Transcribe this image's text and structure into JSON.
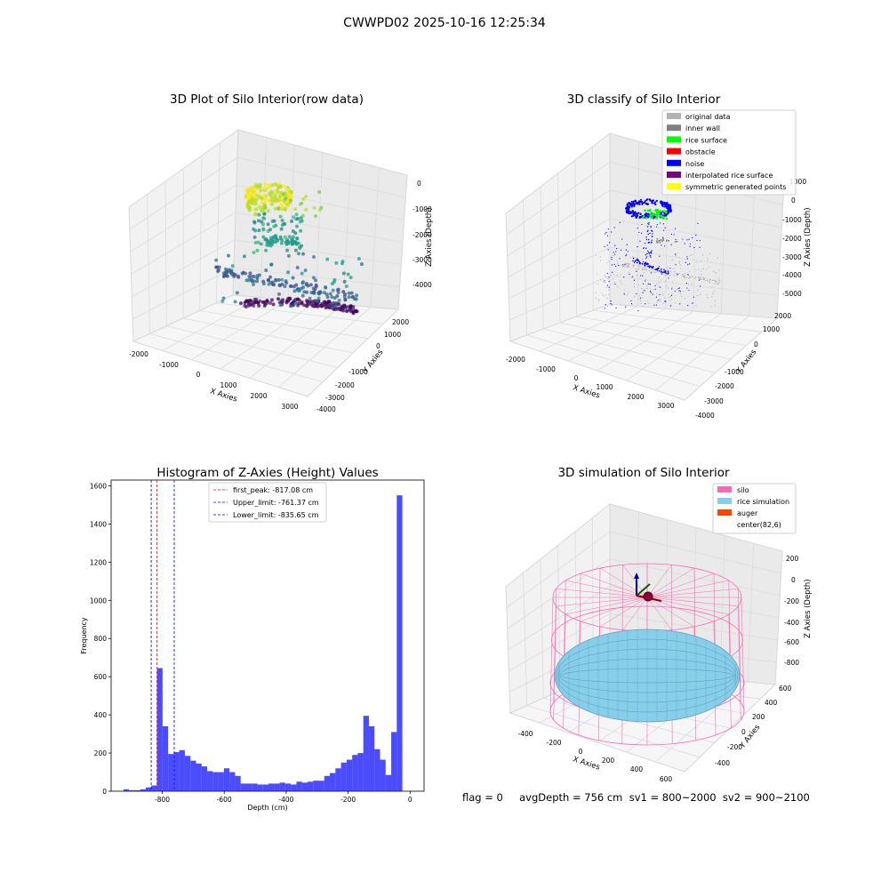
{
  "figure": {
    "suptitle": "CWWPD02 2025-10-16 12:25:34",
    "footer": "flag = 0     avgDepth = 756 cm  sv1 = 800~2000  sv2 = 900~2100"
  },
  "panels": {
    "raw": {
      "title": "3D Plot of Silo Interior(row data)",
      "xlabel": "X Axies",
      "ylabel": "Y Axies",
      "zlabel": "Z Axies (Depth)",
      "xticks": [
        "-2000",
        "-1000",
        "0",
        "1000",
        "2000",
        "3000"
      ],
      "yticks": [
        "2000",
        "1000",
        "0",
        "-1000",
        "-2000",
        "-3000",
        "-4000"
      ],
      "zticks": [
        "0",
        "-1000",
        "-2000",
        "-3000",
        "-4000"
      ]
    },
    "classify": {
      "title": "3D classify of Silo Interior",
      "xlabel": "X Axies",
      "ylabel": "Y Axies",
      "zlabel": "Z Axies (Depth)",
      "xticks": [
        "-2000",
        "-1000",
        "0",
        "1000",
        "2000",
        "3000"
      ],
      "yticks": [
        "2000",
        "1000",
        "0",
        "-1000",
        "-2000",
        "-3000",
        "-4000"
      ],
      "zticks": [
        "1000",
        "0",
        "-1000",
        "-2000",
        "-3000",
        "-4000",
        "-5000"
      ],
      "legend": [
        {
          "label": "original data",
          "color": "#b3b3b3"
        },
        {
          "label": "inner wall",
          "color": "#808080"
        },
        {
          "label": "rice surface",
          "color": "#00ff00"
        },
        {
          "label": "obstacle",
          "color": "#ff0000"
        },
        {
          "label": "noise",
          "color": "#0000ff"
        },
        {
          "label": "interpolated rice surface",
          "color": "#800080"
        },
        {
          "label": "symmetric generated points",
          "color": "#ffff00"
        }
      ]
    },
    "simulation": {
      "title": "3D simulation of Silo Interior",
      "xlabel": "X Axies",
      "ylabel": "Y Axies",
      "zlabel": "Z Axies (Depth)",
      "xticks": [
        "-400",
        "-200",
        "0",
        "200",
        "400",
        "600"
      ],
      "yticks": [
        "600",
        "400",
        "200",
        "0",
        "-200",
        "-400"
      ],
      "zticks": [
        "200",
        "0",
        "-200",
        "-400",
        "-600",
        "-800"
      ],
      "legend": [
        {
          "label": "silo",
          "color": "#ff69b4"
        },
        {
          "label": "rice simulation",
          "color": "#87ceeb"
        },
        {
          "label": "auger",
          "color": "#ff4500"
        },
        {
          "label": "center(82,6)",
          "color": ""
        }
      ]
    }
  },
  "chart_data": [
    {
      "type": "bar",
      "title": "Histogram of Z-Axies (Height) Values",
      "xlabel": "Depth (cm)",
      "ylabel": "Frequency",
      "xlim": [
        -965,
        45
      ],
      "ylim": [
        0,
        1630
      ],
      "xticks": [
        -800,
        -600,
        -400,
        -200,
        0
      ],
      "yticks": [
        0,
        200,
        400,
        600,
        800,
        1000,
        1200,
        1400,
        1600
      ],
      "bar_color": "#0000ff",
      "bins": [
        [
          -925,
          -907,
          10
        ],
        [
          -907,
          -889,
          5
        ],
        [
          -889,
          -871,
          5
        ],
        [
          -871,
          -853,
          10
        ],
        [
          -853,
          -835,
          20
        ],
        [
          -835,
          -817,
          30
        ],
        [
          -817,
          -799,
          645
        ],
        [
          -799,
          -781,
          340
        ],
        [
          -781,
          -763,
          195
        ],
        [
          -763,
          -745,
          205
        ],
        [
          -745,
          -727,
          215
        ],
        [
          -727,
          -709,
          185
        ],
        [
          -709,
          -691,
          160
        ],
        [
          -691,
          -673,
          145
        ],
        [
          -673,
          -655,
          130
        ],
        [
          -655,
          -637,
          105
        ],
        [
          -637,
          -619,
          100
        ],
        [
          -619,
          -601,
          100
        ],
        [
          -601,
          -583,
          120
        ],
        [
          -583,
          -565,
          100
        ],
        [
          -565,
          -547,
          80
        ],
        [
          -547,
          -529,
          40
        ],
        [
          -529,
          -511,
          40
        ],
        [
          -511,
          -493,
          40
        ],
        [
          -493,
          -475,
          35
        ],
        [
          -475,
          -457,
          35
        ],
        [
          -457,
          -439,
          40
        ],
        [
          -439,
          -421,
          40
        ],
        [
          -421,
          -403,
          45
        ],
        [
          -403,
          -385,
          40
        ],
        [
          -385,
          -367,
          35
        ],
        [
          -367,
          -349,
          50
        ],
        [
          -349,
          -331,
          45
        ],
        [
          -331,
          -313,
          50
        ],
        [
          -313,
          -295,
          55
        ],
        [
          -295,
          -277,
          55
        ],
        [
          -277,
          -259,
          80
        ],
        [
          -259,
          -241,
          95
        ],
        [
          -241,
          -223,
          120
        ],
        [
          -223,
          -205,
          150
        ],
        [
          -205,
          -187,
          165
        ],
        [
          -187,
          -169,
          190
        ],
        [
          -169,
          -151,
          200
        ],
        [
          -151,
          -133,
          395
        ],
        [
          -133,
          -115,
          340
        ],
        [
          -115,
          -97,
          220
        ],
        [
          -97,
          -79,
          165
        ],
        [
          -79,
          -61,
          85
        ],
        [
          -61,
          -43,
          310
        ],
        [
          -43,
          -25,
          1550
        ]
      ],
      "lines": [
        {
          "label": "first_peak: -817.08 cm",
          "x": -817.08,
          "color": "#ff0000"
        },
        {
          "label": "Upper_limit: -761.37 cm",
          "x": -761.37,
          "color": "#0000ff"
        },
        {
          "label": "Lower_limit: -835.65 cm",
          "x": -835.65,
          "color": "#0000cc"
        }
      ]
    }
  ]
}
